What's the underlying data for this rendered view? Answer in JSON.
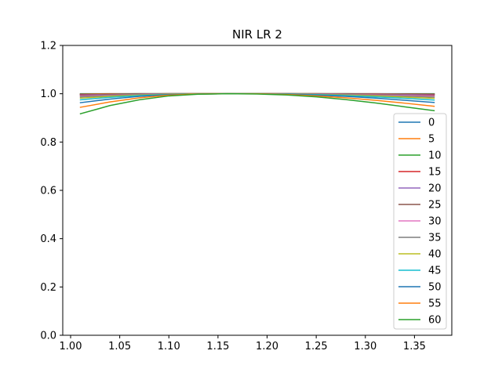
{
  "chart_data": {
    "type": "line",
    "title": "NIR LR 2",
    "xlabel": "",
    "ylabel": "",
    "xlim": [
      0.992,
      1.388
    ],
    "ylim": [
      0.0,
      1.2
    ],
    "xticks": [
      "1.00",
      "1.05",
      "1.10",
      "1.15",
      "1.20",
      "1.25",
      "1.30",
      "1.35"
    ],
    "xtick_values": [
      1.0,
      1.05,
      1.1,
      1.15,
      1.2,
      1.25,
      1.3,
      1.35
    ],
    "yticks": [
      "0.0",
      "0.2",
      "0.4",
      "0.6",
      "0.8",
      "1.0",
      "1.2"
    ],
    "ytick_values": [
      0.0,
      0.2,
      0.4,
      0.6,
      0.8,
      1.0,
      1.2
    ],
    "grid": false,
    "legend_position": "right",
    "x": [
      1.01,
      1.04,
      1.07,
      1.1,
      1.13,
      1.16,
      1.19,
      1.22,
      1.25,
      1.28,
      1.31,
      1.34,
      1.37
    ],
    "series": [
      {
        "name": "0",
        "color": "#1f77b4",
        "values": [
          1.0,
          1.0,
          1.0,
          1.0,
          1.0,
          1.0,
          1.0,
          1.0,
          1.0,
          1.0,
          1.0,
          1.0,
          1.0
        ]
      },
      {
        "name": "5",
        "color": "#ff7f0e",
        "values": [
          0.999,
          1.0,
          1.0,
          1.0,
          1.0,
          1.0,
          1.0,
          1.0,
          1.0,
          1.0,
          1.0,
          0.999,
          0.999
        ]
      },
      {
        "name": "10",
        "color": "#2ca02c",
        "values": [
          0.998,
          0.999,
          1.0,
          1.0,
          1.0,
          1.0,
          1.0,
          1.0,
          1.0,
          1.0,
          0.999,
          0.999,
          0.998
        ]
      },
      {
        "name": "15",
        "color": "#d62728",
        "values": [
          0.997,
          0.998,
          0.999,
          1.0,
          1.0,
          1.0,
          1.0,
          1.0,
          1.0,
          0.999,
          0.999,
          0.998,
          0.997
        ]
      },
      {
        "name": "20",
        "color": "#9467bd",
        "values": [
          0.995,
          0.997,
          0.999,
          1.0,
          1.0,
          1.0,
          1.0,
          1.0,
          0.999,
          0.999,
          0.998,
          0.997,
          0.995
        ]
      },
      {
        "name": "25",
        "color": "#8c564b",
        "values": [
          0.993,
          0.996,
          0.998,
          0.999,
          1.0,
          1.0,
          1.0,
          1.0,
          0.999,
          0.998,
          0.997,
          0.995,
          0.993
        ]
      },
      {
        "name": "30",
        "color": "#e377c2",
        "values": [
          0.99,
          0.994,
          0.997,
          0.999,
          1.0,
          1.0,
          1.0,
          0.999,
          0.999,
          0.997,
          0.995,
          0.993,
          0.99
        ]
      },
      {
        "name": "35",
        "color": "#7f7f7f",
        "values": [
          0.987,
          0.992,
          0.996,
          0.999,
          1.0,
          1.0,
          1.0,
          0.999,
          0.998,
          0.996,
          0.993,
          0.99,
          0.986
        ]
      },
      {
        "name": "40",
        "color": "#bcbd22",
        "values": [
          0.982,
          0.989,
          0.994,
          0.998,
          1.0,
          1.0,
          1.0,
          0.999,
          0.997,
          0.994,
          0.991,
          0.986,
          0.981
        ]
      },
      {
        "name": "45",
        "color": "#17becf",
        "values": [
          0.975,
          0.985,
          0.992,
          0.997,
          0.999,
          1.0,
          1.0,
          0.999,
          0.996,
          0.992,
          0.987,
          0.981,
          0.974
        ]
      },
      {
        "name": "50",
        "color": "#1f77b4",
        "values": [
          0.963,
          0.978,
          0.989,
          0.996,
          0.999,
          1.0,
          1.0,
          0.998,
          0.994,
          0.989,
          0.982,
          0.973,
          0.964
        ]
      },
      {
        "name": "55",
        "color": "#ff7f0e",
        "values": [
          0.944,
          0.966,
          0.983,
          0.994,
          0.999,
          1.0,
          1.0,
          0.997,
          0.991,
          0.983,
          0.973,
          0.961,
          0.948
        ]
      },
      {
        "name": "60",
        "color": "#2ca02c",
        "values": [
          0.917,
          0.951,
          0.975,
          0.991,
          0.998,
          1.0,
          0.999,
          0.995,
          0.987,
          0.976,
          0.962,
          0.946,
          0.93
        ]
      }
    ]
  }
}
